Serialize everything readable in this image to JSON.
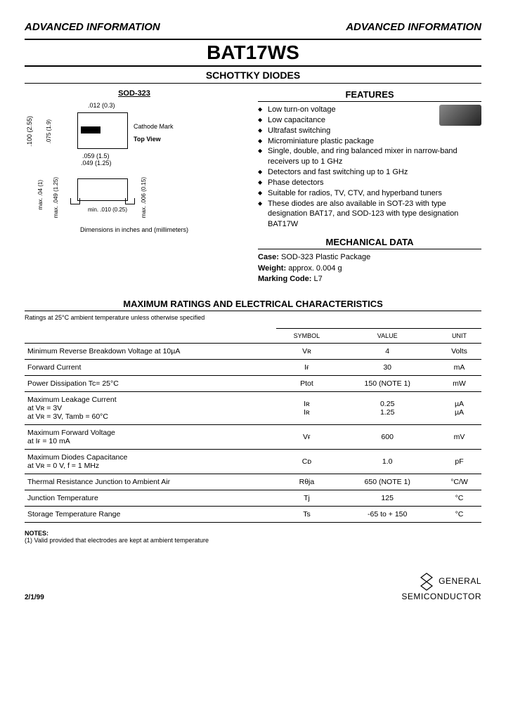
{
  "header": {
    "left": "ADVANCED INFORMATION",
    "right": "ADVANCED INFORMATION"
  },
  "part_number": "BAT17WS",
  "subtitle": "SCHOTTKY DIODES",
  "package_label": "SOD-323",
  "diagram": {
    "dim1": ".012 (0.3)",
    "cathode": "Cathode Mark",
    "topview": "Top View",
    "dim2": ".100 (2.55)",
    "dim3": ".075 (1.9)",
    "dim4": ".059 (1.5)",
    "dim5": ".049 (1.25)",
    "dim6": "max. .049 (1.25)",
    "dim7": "max. .04 (1)",
    "dim8": "min. .010 (0.25)",
    "dim9": "max. .006 (0.15)",
    "note": "Dimensions in inches and (millimeters)"
  },
  "features_heading": "FEATURES",
  "features": [
    "Low turn-on voltage",
    "Low capacitance",
    "Ultrafast switching",
    "Microminiature plastic package",
    "Single, double, and ring balanced mixer in narrow-band receivers up to 1 GHz",
    "Detectors and fast switching up to 1 GHz",
    "Phase detectors",
    "Suitable for radios, TV, CTV, and hyperband tuners",
    "These diodes are also available in SOT-23 with type designation BAT17, and SOD-123 with type designation BAT17W"
  ],
  "mechanical_heading": "MECHANICAL DATA",
  "mechanical": {
    "case_label": "Case:",
    "case_val": "SOD-323 Plastic Package",
    "weight_label": "Weight:",
    "weight_val": "approx. 0.004 g",
    "marking_label": "Marking Code:",
    "marking_val": "L7"
  },
  "ratings_heading": "MAXIMUM RATINGS AND ELECTRICAL CHARACTERISTICS",
  "ratings_note": "Ratings at 25°C ambient temperature unless otherwise specified",
  "table_headers": {
    "symbol": "SYMBOL",
    "value": "VALUE",
    "unit": "UNIT"
  },
  "rows": [
    {
      "param": "Minimum Reverse Breakdown Voltage at 10µA",
      "symbol": "Vʀ",
      "value": "4",
      "unit": "Volts"
    },
    {
      "param": "Forward Current",
      "symbol": "Iғ",
      "value": "30",
      "unit": "mA"
    },
    {
      "param": "Power Dissipation Tc= 25°C",
      "symbol": "Ptot",
      "value": "150 (NOTE 1)",
      "unit": "mW"
    },
    {
      "param": "Maximum Leakage Current\nat Vʀ = 3V\nat Vʀ = 3V, Tamb = 60°C",
      "symbol": "Iʀ\nIʀ",
      "value": "0.25\n1.25",
      "unit": "µA\nµA"
    },
    {
      "param": "Maximum Forward Voltage\nat Iғ = 10 mA",
      "symbol": "Vғ",
      "value": "600",
      "unit": "mV"
    },
    {
      "param": "Maximum Diodes Capacitance\nat Vʀ = 0 V, f = 1 MHz",
      "symbol": "Cᴅ",
      "value": "1.0",
      "unit": "pF"
    },
    {
      "param": "Thermal Resistance Junction to Ambient Air",
      "symbol": "Rθja",
      "value": "650 (NOTE 1)",
      "unit": "°C/W"
    },
    {
      "param": "Junction Temperature",
      "symbol": "Tj",
      "value": "125",
      "unit": "°C"
    },
    {
      "param": "Storage Temperature Range",
      "symbol": "Ts",
      "value": "-65 to + 150",
      "unit": "°C"
    }
  ],
  "notes_heading": "NOTES:",
  "notes_body": "(1) Valid provided that electrodes are kept at ambient temperature",
  "footer_date": "2/1/99",
  "logo": {
    "line1": "GENERAL",
    "line2": "SEMICONDUCTOR"
  }
}
